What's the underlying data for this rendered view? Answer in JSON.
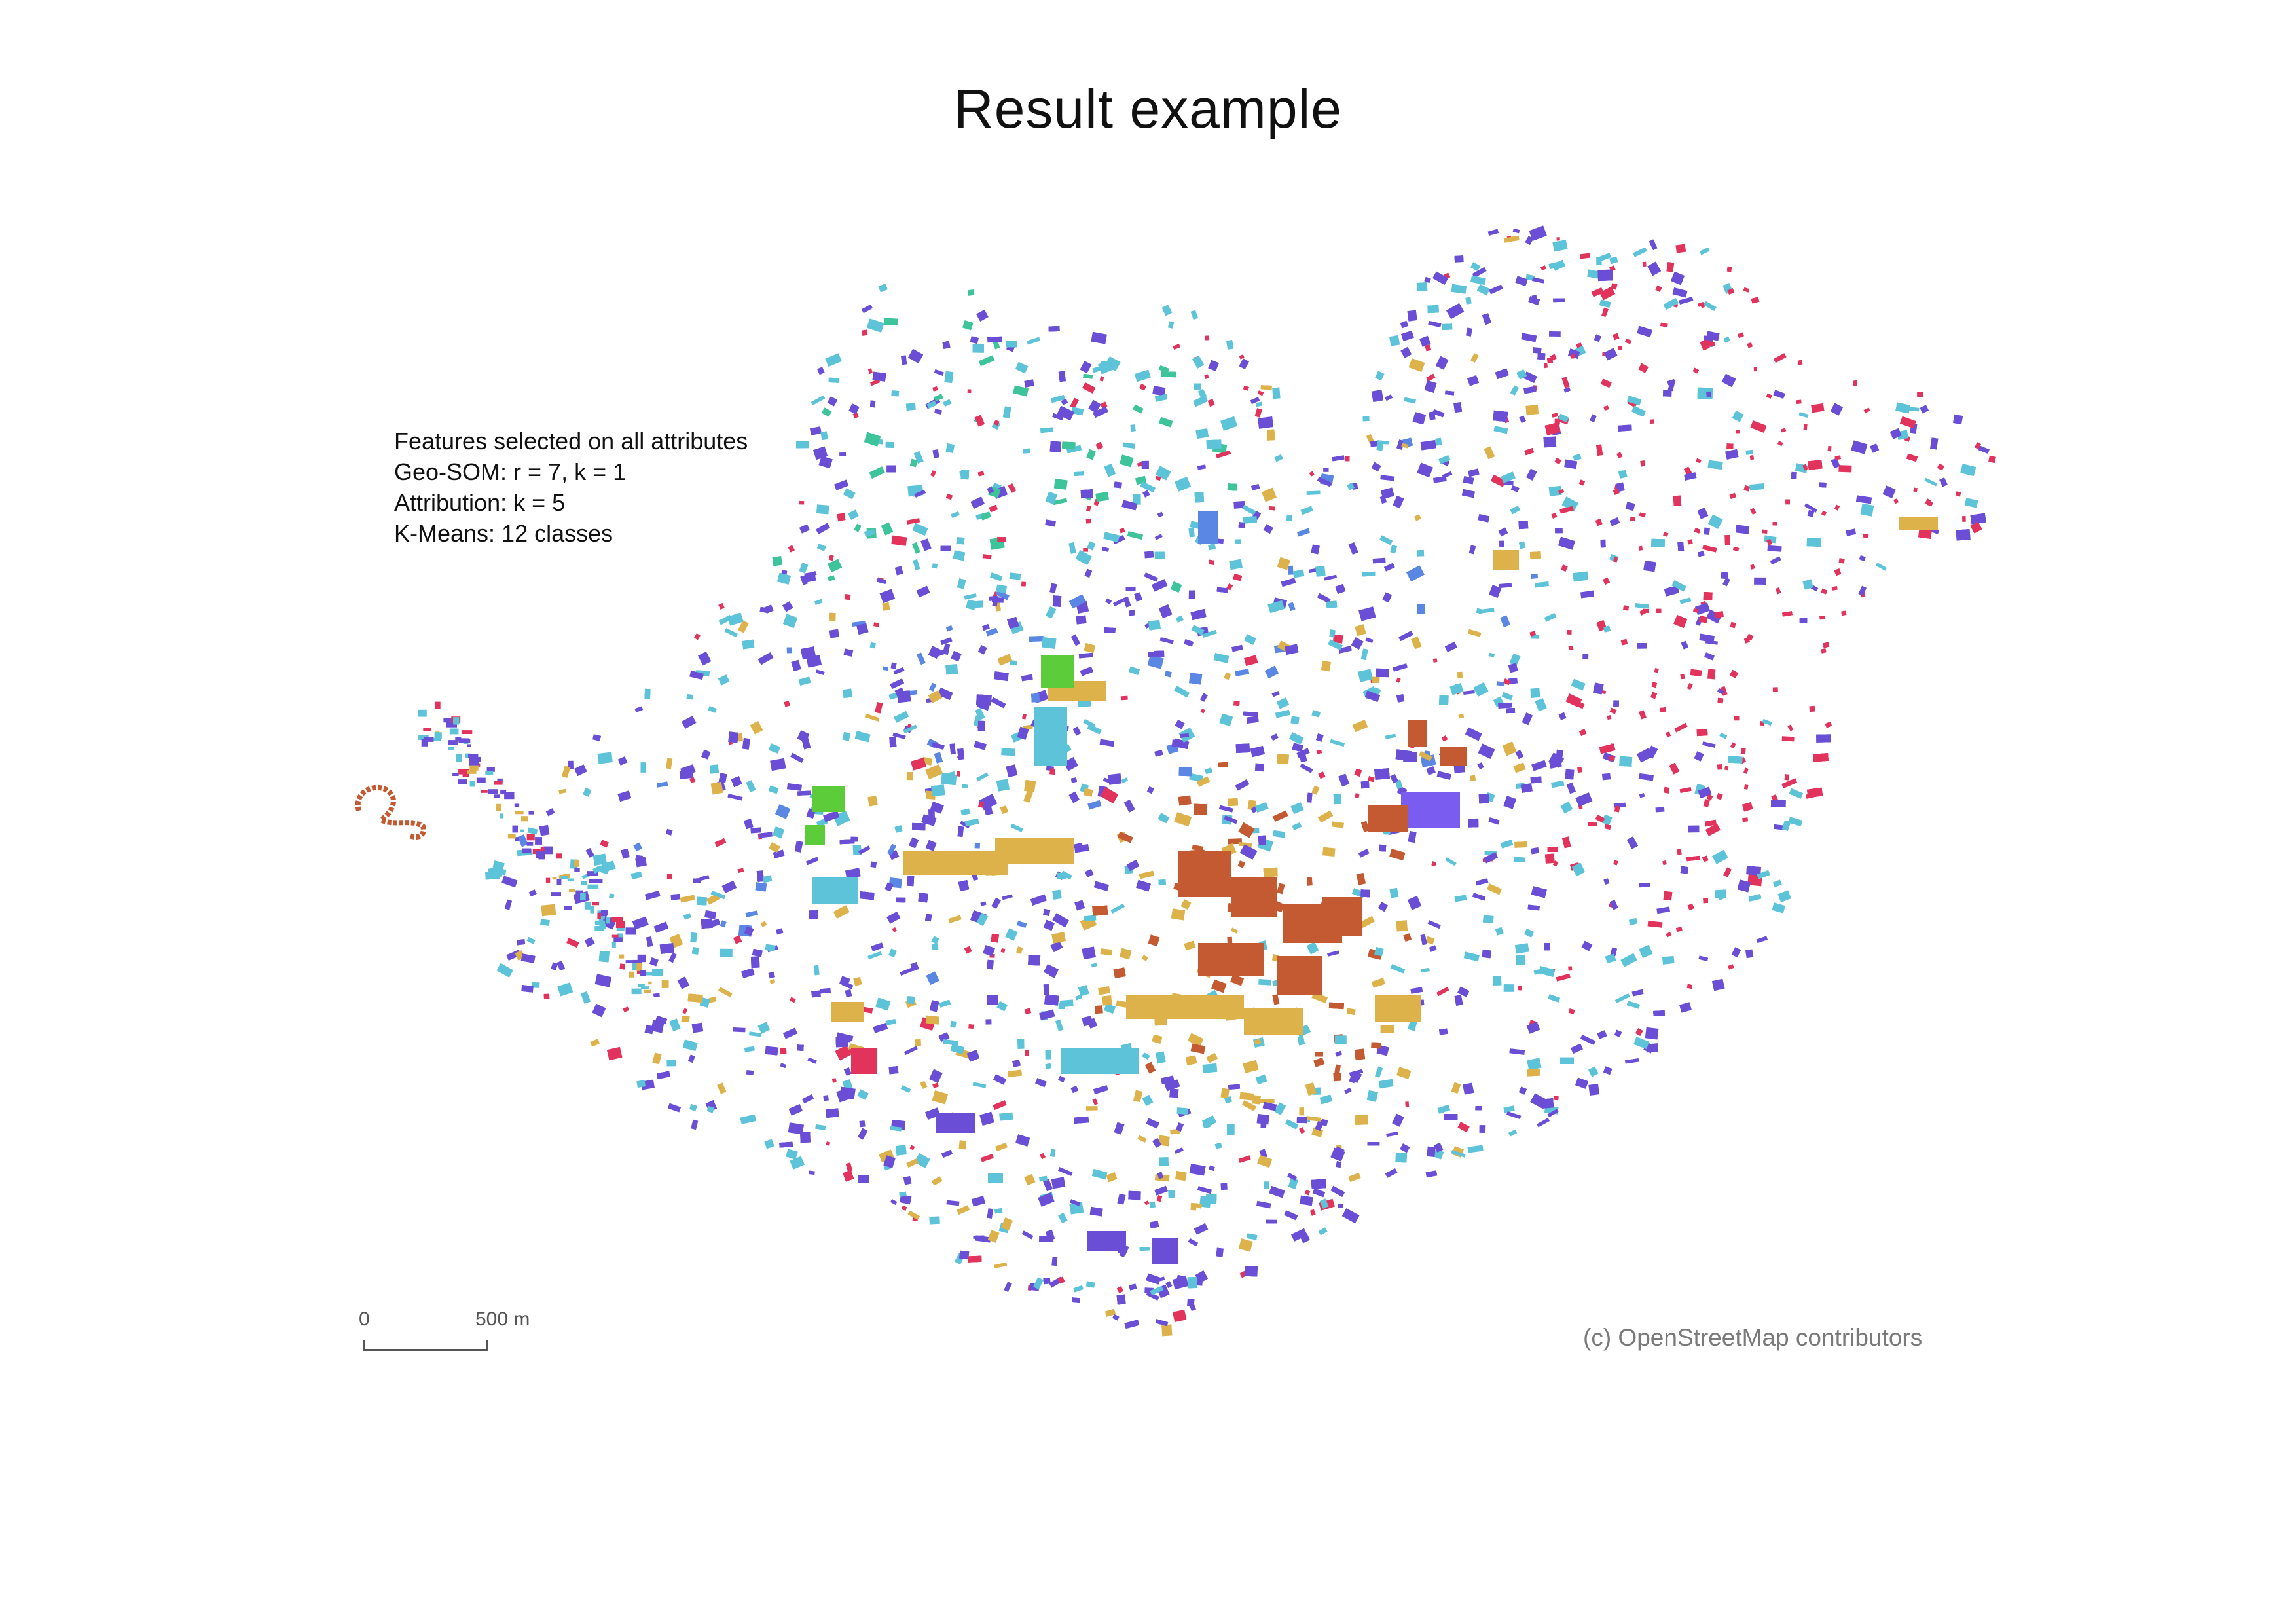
{
  "title": "Result example",
  "legend_lines": [
    "Features selected on all attributes",
    "Geo-SOM: r = 7, k = 1",
    "Attribution: k = 5",
    "K-Means: 12 classes"
  ],
  "scalebar": {
    "start_label": "0",
    "end_label": "500 m",
    "length_m": 500
  },
  "attribution": "(c) OpenStreetMap contributors",
  "map": {
    "layer": "building footprints clustered into classes",
    "class_colors": {
      "purple": "#6a4fd6",
      "cyan": "#5cc3d8",
      "gold": "#ddb24a",
      "red": "#e2335c",
      "teal": "#3ec49a",
      "brown": "#c45a32",
      "green": "#5ccc3a",
      "violet": "#7b5cf0",
      "blue": "#5a86e4"
    }
  }
}
